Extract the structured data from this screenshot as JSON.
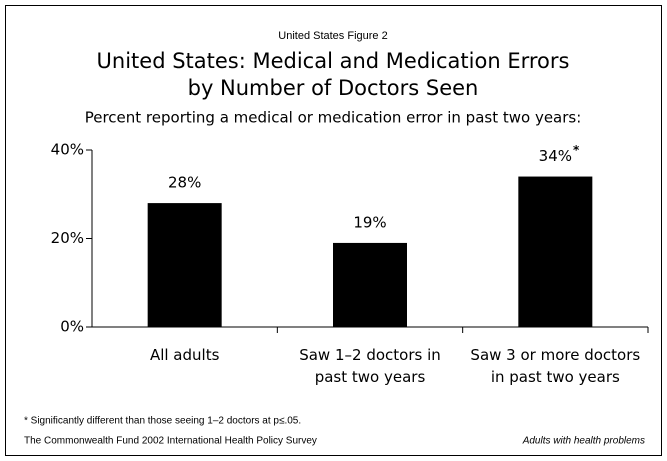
{
  "chart_data": {
    "type": "bar",
    "figure_label": "United States Figure 2",
    "title": [
      "United States: Medical and Medication Errors",
      "by Number of Doctors Seen"
    ],
    "subtitle": "Percent reporting a medical or medication error in past two years:",
    "categories": [
      "All adults",
      "Saw 1–2 doctors in past two years",
      "Saw 3 or more doctors in past two years"
    ],
    "values": [
      28,
      19,
      34
    ],
    "value_labels": [
      "28%",
      "19%",
      "34%"
    ],
    "significance_marker": "*",
    "color": "#000000",
    "ylim": [
      0,
      40
    ],
    "yticks": [
      {
        "value": 0,
        "label": "0%"
      },
      {
        "value": 20,
        "label": "20%"
      },
      {
        "value": 40,
        "label": "40%"
      }
    ],
    "footnote": "* Significantly different than those seeing 1–2 doctors at p≤.05.",
    "source": "The Commonwealth Fund 2002 International Health Policy Survey",
    "note": "Adults with health problems"
  }
}
